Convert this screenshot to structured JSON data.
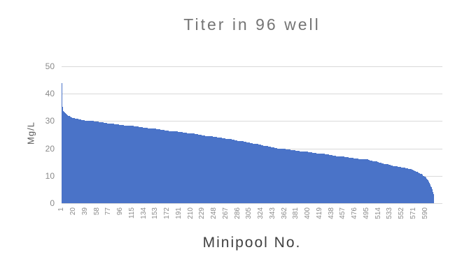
{
  "title": "Titer in 96 well",
  "colors": {
    "bar": "#4a73c8",
    "gridline": "#d9d9d9",
    "title_text": "#757575",
    "axis_title_text": "#404040",
    "tick_text": "#8a8a8a"
  },
  "chart_data": {
    "type": "bar",
    "title": "Titer in 96 well",
    "xlabel": "Minipool No.",
    "ylabel": "Mg/L",
    "ylim": [
      0,
      50
    ],
    "y_ticks": [
      0,
      10,
      20,
      30,
      40,
      50
    ],
    "grid": "horizontal",
    "legend": "none",
    "bar_color": "#4a73c8",
    "n_points": 608,
    "x_tick_labels": [
      1,
      20,
      39,
      58,
      77,
      96,
      115,
      134,
      153,
      172,
      191,
      210,
      229,
      248,
      267,
      286,
      305,
      324,
      343,
      362,
      381,
      400,
      419,
      438,
      457,
      476,
      495,
      514,
      533,
      552,
      571,
      590
    ],
    "profile_anchors": [
      [
        1,
        44.0
      ],
      [
        2,
        35.2
      ],
      [
        3,
        33.6
      ],
      [
        6,
        33.0
      ],
      [
        12,
        31.8
      ],
      [
        20,
        31.0
      ],
      [
        40,
        30.2
      ],
      [
        65,
        29.6
      ],
      [
        90,
        28.8
      ],
      [
        115,
        28.2
      ],
      [
        140,
        27.5
      ],
      [
        165,
        26.8
      ],
      [
        190,
        26.1
      ],
      [
        215,
        25.4
      ],
      [
        240,
        24.5
      ],
      [
        265,
        23.8
      ],
      [
        290,
        22.8
      ],
      [
        315,
        21.8
      ],
      [
        340,
        20.6
      ],
      [
        355,
        20.0
      ],
      [
        385,
        19.2
      ],
      [
        420,
        18.2
      ],
      [
        465,
        16.8
      ],
      [
        500,
        15.9
      ],
      [
        530,
        14.3
      ],
      [
        548,
        13.3
      ],
      [
        565,
        12.8
      ],
      [
        578,
        11.8
      ],
      [
        588,
        10.6
      ],
      [
        594,
        9.6
      ],
      [
        599,
        8.3
      ],
      [
        603,
        6.3
      ],
      [
        606,
        4.6
      ],
      [
        608,
        3.2
      ]
    ]
  }
}
